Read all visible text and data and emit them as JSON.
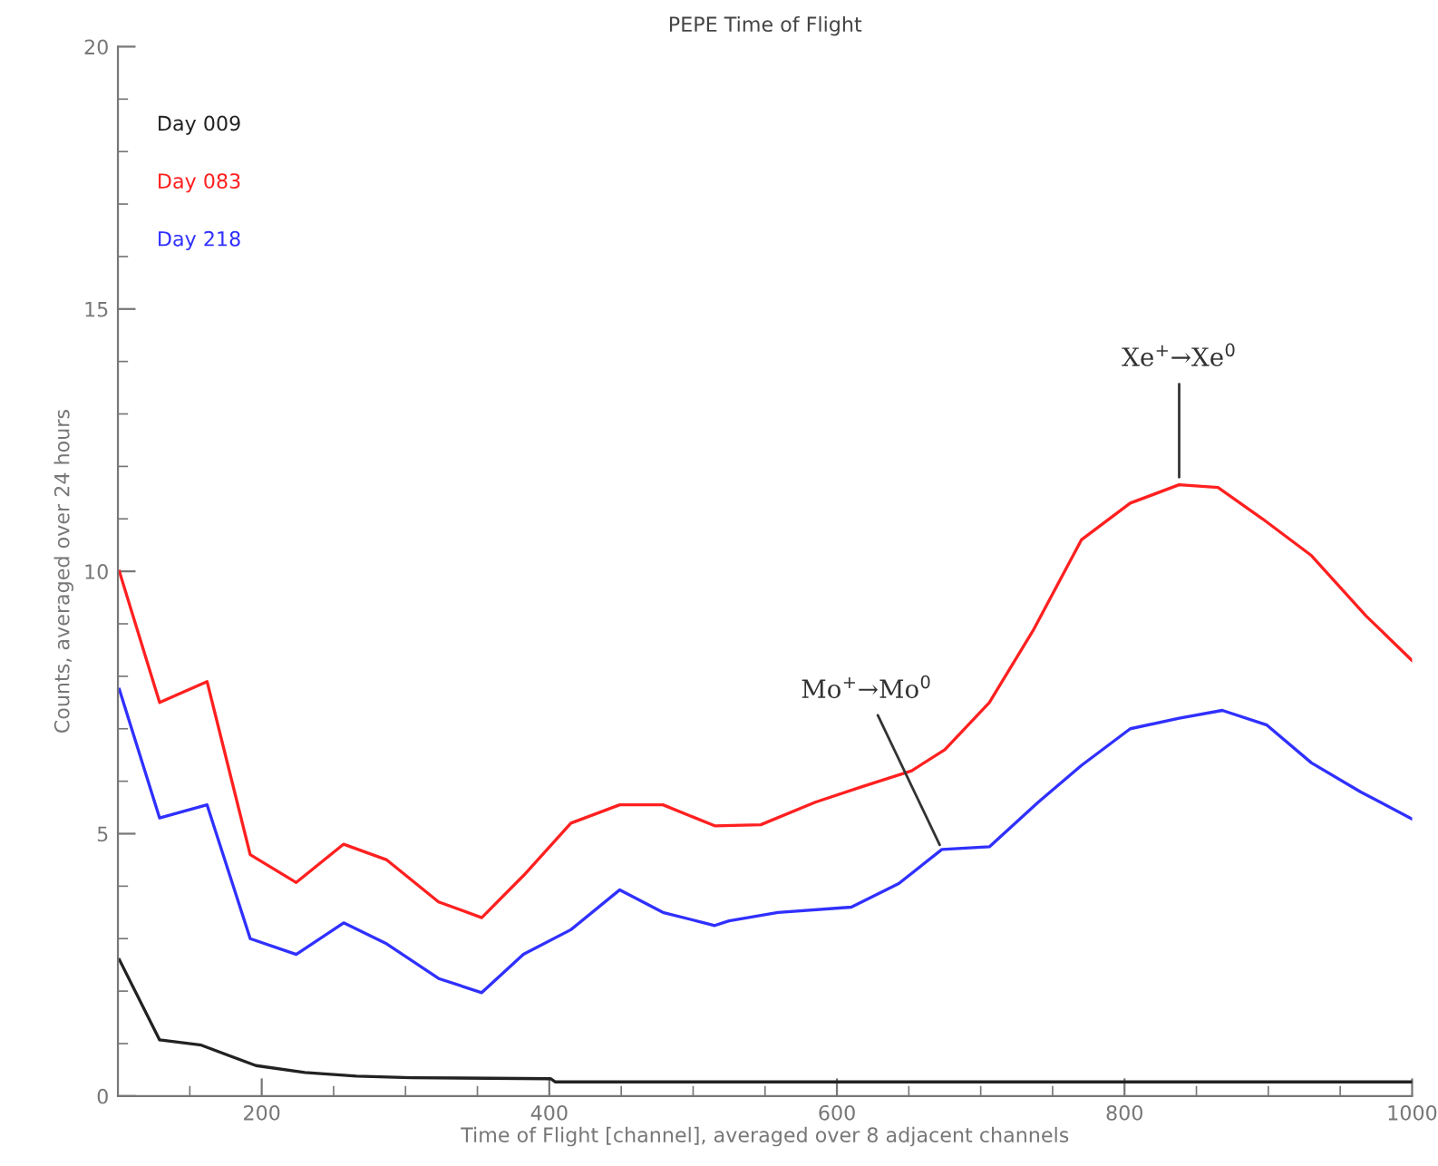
{
  "chart_data": {
    "type": "line",
    "title": "PEPE Time of Flight",
    "xlabel": "Time of Flight [channel], averaged over 8 adjacent channels",
    "ylabel": "Counts, averaged over 24 hours",
    "xlim": [
      100,
      1000
    ],
    "ylim": [
      0,
      20
    ],
    "xticks": [
      200,
      400,
      600,
      800,
      1000
    ],
    "yticks": [
      0,
      5,
      10,
      15,
      20
    ],
    "legend": "top left",
    "grid": false,
    "marker": "none",
    "line_style": "solid",
    "series": [
      {
        "name": "Day 009",
        "color": "#222222",
        "x": [
          101,
          129,
          158,
          196,
          230,
          266,
          304,
          401,
          404,
          1000
        ],
        "values": [
          2.6,
          1.07,
          0.97,
          0.58,
          0.45,
          0.38,
          0.35,
          0.33,
          0.27,
          0.27
        ]
      },
      {
        "name": "Day 083",
        "color": "#ff2020",
        "x": [
          101,
          129,
          162,
          192,
          224,
          257,
          287,
          323,
          353,
          382,
          415,
          449,
          479,
          515,
          547,
          585,
          618,
          652,
          675,
          706,
          737,
          770,
          804,
          838,
          865,
          896,
          930,
          968,
          1000
        ],
        "values": [
          10.0,
          7.5,
          7.9,
          4.6,
          4.07,
          4.8,
          4.5,
          3.7,
          3.4,
          4.2,
          5.2,
          5.55,
          5.55,
          5.15,
          5.17,
          5.6,
          5.9,
          6.2,
          6.6,
          7.5,
          8.9,
          10.6,
          11.3,
          11.65,
          11.6,
          11.0,
          10.3,
          9.15,
          8.3
        ]
      },
      {
        "name": "Day 218",
        "color": "#3030ff",
        "x": [
          101,
          129,
          162,
          192,
          224,
          257,
          287,
          323,
          353,
          382,
          415,
          449,
          479,
          515,
          525,
          559,
          610,
          643,
          673,
          706,
          740,
          770,
          804,
          838,
          868,
          899,
          930,
          964,
          1000
        ],
        "values": [
          7.75,
          5.3,
          5.55,
          3.0,
          2.7,
          3.3,
          2.9,
          2.24,
          1.97,
          2.7,
          3.17,
          3.93,
          3.5,
          3.25,
          3.34,
          3.5,
          3.6,
          4.05,
          4.7,
          4.75,
          5.6,
          6.3,
          7.0,
          7.2,
          7.35,
          7.07,
          6.35,
          5.8,
          5.28
        ]
      }
    ],
    "annotations": [
      {
        "text": "Mo$^{+}$→Mo$^{0}$",
        "x": 673,
        "y": 4.7
      },
      {
        "text": "Xe$^{+}$→Xe$^{0}$",
        "x": 838,
        "y": 11.65
      }
    ]
  }
}
